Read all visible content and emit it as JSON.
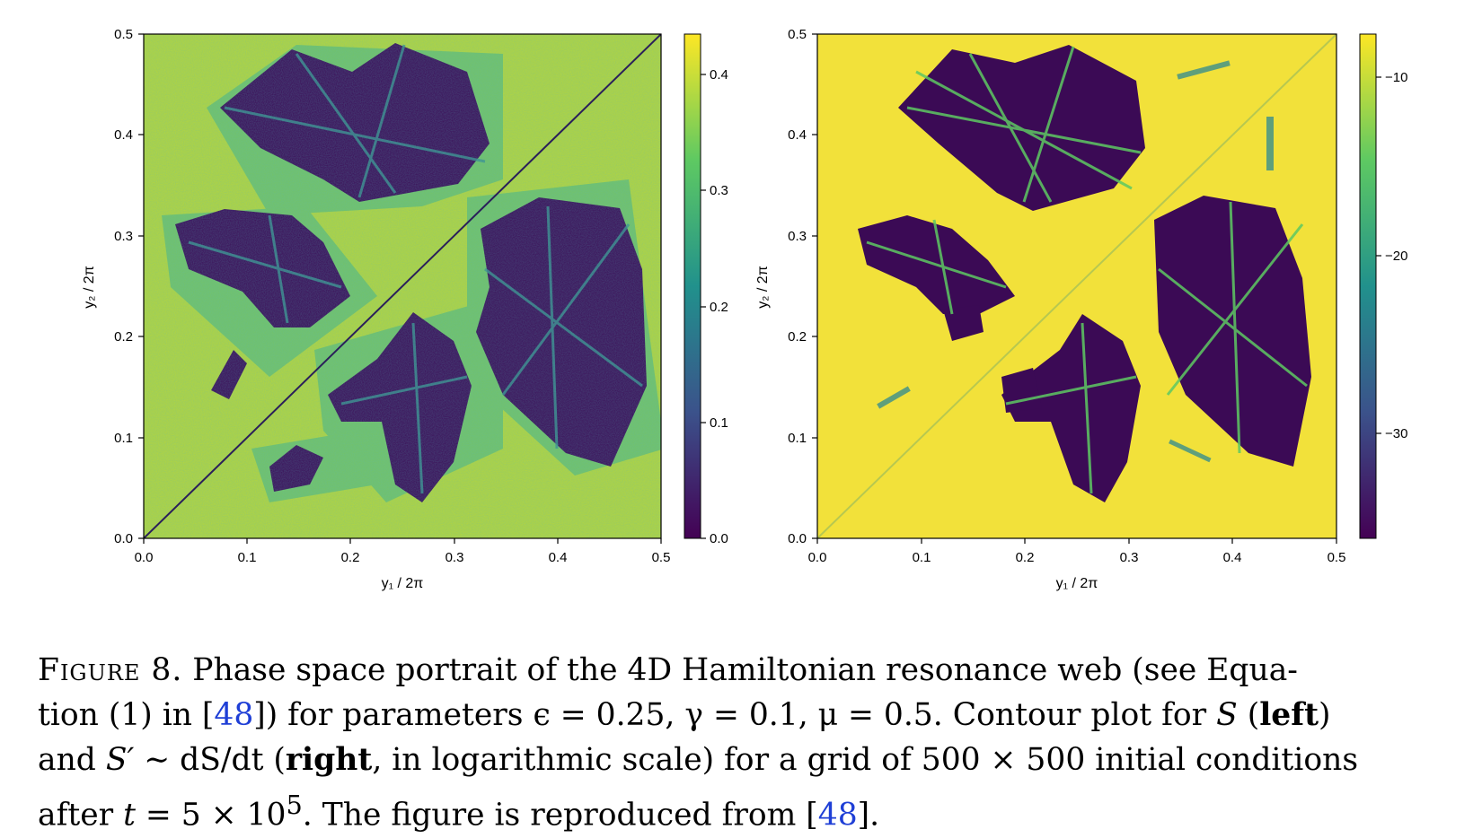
{
  "chart_data": [
    {
      "type": "heatmap",
      "panel": "left",
      "xlabel": "y₁ / 2π",
      "ylabel": "y₂ / 2π",
      "xlim": [
        0,
        0.5
      ],
      "ylim": [
        0,
        0.5
      ],
      "xticks": [
        "0.0",
        "0.1",
        "0.2",
        "0.3",
        "0.4",
        "0.5"
      ],
      "yticks": [
        "0.0",
        "0.1",
        "0.2",
        "0.3",
        "0.4",
        "0.5"
      ],
      "colorbar": {
        "range": [
          0.0,
          0.43
        ],
        "ticks": [
          0.0,
          0.1,
          0.2,
          0.3,
          0.4
        ],
        "tick_labels": [
          "0.0",
          "0.1",
          "0.2",
          "0.3",
          "0.4"
        ]
      },
      "colormap": "viridis",
      "grid": "500 × 500"
    },
    {
      "type": "heatmap",
      "panel": "right",
      "xlabel": "y₁ / 2π",
      "ylabel": "y₂ / 2π",
      "xlim": [
        0,
        0.5
      ],
      "ylim": [
        0,
        0.5
      ],
      "xticks": [
        "0.0",
        "0.1",
        "0.2",
        "0.3",
        "0.4",
        "0.5"
      ],
      "yticks": [
        "0.0",
        "0.1",
        "0.2",
        "0.3",
        "0.4",
        "0.5"
      ],
      "colorbar": {
        "range": [
          -36,
          -7
        ],
        "ticks": [
          -10,
          -20,
          -30
        ],
        "tick_labels": [
          "−10",
          "−20",
          "−30"
        ]
      },
      "colormap": "viridis",
      "grid": "500 × 500"
    }
  ],
  "caption": {
    "figure_label": "Figure 8.",
    "l1_text": "Phase space portrait of the 4D Hamiltonian resonance web (see Equa-",
    "l2_a": "tion (1) in [",
    "l2_cite": "48",
    "l2_b": "]) for parameters ϵ = 0.25, γ = 0.1, μ = 0.5. Contour plot for ",
    "l2_S": "S",
    "l2_c": " (",
    "l2_left": "left",
    "l2_d": ")",
    "l3_a": "and ",
    "l3_S": "S′",
    "l3_b": " ∼ dS/dt (",
    "l3_right": "right",
    "l3_c": ", in logarithmic scale) for a grid of 500 × 500 initial conditions",
    "l4_a": "after ",
    "l4_t": "t",
    "l4_b": " = 5 × 10",
    "l4_sup": "5",
    "l4_c": ". The figure is reproduced from [",
    "l4_cite": "48",
    "l4_d": "]."
  },
  "colors": {
    "viridis_low": "#440154",
    "viridis_mid": "#21918c",
    "viridis_high": "#fde725",
    "citation": "#1f3fd6"
  }
}
